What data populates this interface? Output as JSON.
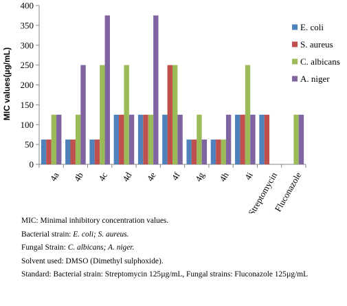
{
  "chart_data": {
    "type": "bar",
    "ylabel": "MIC values(µg/mL)",
    "ylim": [
      0,
      400
    ],
    "yticks": [
      0,
      50,
      100,
      150,
      200,
      250,
      300,
      350,
      400
    ],
    "grid": false,
    "legend_position": "right",
    "categories": [
      "4a",
      "4b",
      "4c",
      "4d",
      "4e",
      "4f",
      "4g",
      "4h",
      "4i",
      "Streptomycin",
      "Fluconazole"
    ],
    "series": [
      {
        "name": "E. coli",
        "color": "#4f81bd",
        "values": [
          62.5,
          62.5,
          62.5,
          125,
          125,
          125,
          62.5,
          62.5,
          125,
          125,
          null
        ]
      },
      {
        "name": "S. aureus",
        "color": "#c0504d",
        "values": [
          62.5,
          62.5,
          62.5,
          125,
          125,
          250,
          62.5,
          62.5,
          125,
          125,
          null
        ]
      },
      {
        "name": "C. albicans",
        "color": "#9bbb59",
        "values": [
          125,
          125,
          250,
          250,
          125,
          250,
          125,
          62.5,
          250,
          null,
          125
        ]
      },
      {
        "name": "A. niger",
        "color": "#8064a2",
        "values": [
          125,
          250,
          375,
          125,
          375,
          125,
          62.5,
          125,
          125,
          null,
          125
        ]
      }
    ]
  },
  "notes": {
    "line1": "MIC: Minimal inhibitory concentration values.",
    "bacterial_label": "Bacterial strain: ",
    "bacterial_value": "E. coli; S. aureus.",
    "fungal_label": "Fungal Strain: ",
    "fungal_value": "C. albicans; A. niger.",
    "solvent": "Solvent used: DMSO (Dimethyl sulphoxide).",
    "standard": "Standard: Bacterial strain: Streptomycin 125µg/mL, Fungal strains: Fluconazole 125µg/mL"
  }
}
